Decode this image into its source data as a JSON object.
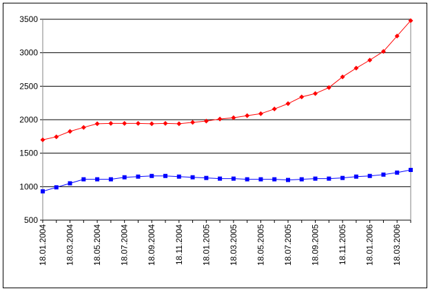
{
  "chart_data": {
    "type": "line",
    "categories": [
      "18.01.2004",
      null,
      "18.03.2004",
      null,
      "18.05.2004",
      null,
      "18.07.2004",
      null,
      "18.09.2004",
      null,
      "18.11.2004",
      null,
      "18.01.2005",
      null,
      "18.03.2005",
      null,
      "18.05.2005",
      null,
      "18.07.2005",
      null,
      "18.09.2005",
      null,
      "18.11.2005",
      null,
      "18.01.2006",
      null,
      "18.03.2006",
      null
    ],
    "series": [
      {
        "color": "#ff0000",
        "marker": "diamond",
        "values": [
          1700,
          1745,
          1825,
          1885,
          1940,
          1945,
          1945,
          1945,
          1940,
          1945,
          1940,
          1960,
          1980,
          2010,
          2030,
          2060,
          2090,
          2160,
          2240,
          2340,
          2390,
          2480,
          2640,
          2770,
          2890,
          3020,
          3250,
          3480
        ]
      },
      {
        "color": "#0000ff",
        "marker": "square",
        "values": [
          930,
          990,
          1050,
          1110,
          1110,
          1110,
          1140,
          1150,
          1160,
          1160,
          1150,
          1140,
          1130,
          1120,
          1120,
          1110,
          1110,
          1110,
          1100,
          1110,
          1120,
          1120,
          1130,
          1150,
          1160,
          1180,
          1210,
          1250
        ]
      }
    ],
    "ylim": [
      500,
      3500
    ],
    "yticks": [
      500,
      1000,
      1500,
      2000,
      2500,
      3000,
      3500
    ],
    "grid": true
  }
}
